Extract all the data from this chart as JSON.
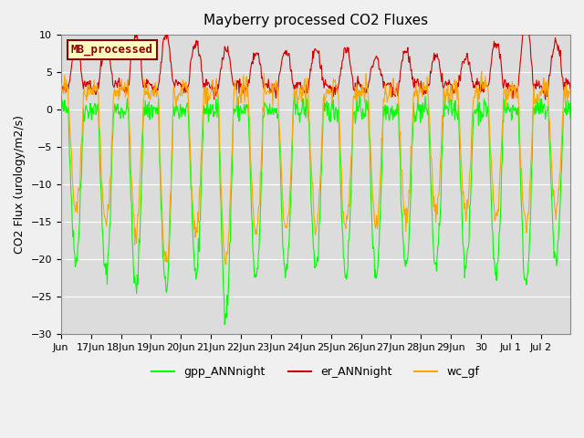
{
  "title": "Mayberry processed CO2 Fluxes",
  "ylabel": "CO2 Flux (urology/m2/s)",
  "ylim": [
    -30,
    10
  ],
  "yticks": [
    -30,
    -25,
    -20,
    -15,
    -10,
    -5,
    0,
    5,
    10
  ],
  "legend_label": "MB_processed",
  "series": [
    "gpp_ANNnight",
    "er_ANNnight",
    "wc_gf"
  ],
  "colors": [
    "#00FF00",
    "#CC0000",
    "#FFA500"
  ],
  "bg_color": "#DCDCDC",
  "fig_color": "#F0F0F0",
  "legend_entries": [
    "gpp_ANNnight",
    "er_ANNnight",
    "wc_gf"
  ],
  "legend_colors": [
    "#00FF00",
    "#CC0000",
    "#FFA500"
  ],
  "box_facecolor": "#FFFFC0",
  "box_edgecolor": "#8B0000",
  "box_textcolor": "#8B0000"
}
